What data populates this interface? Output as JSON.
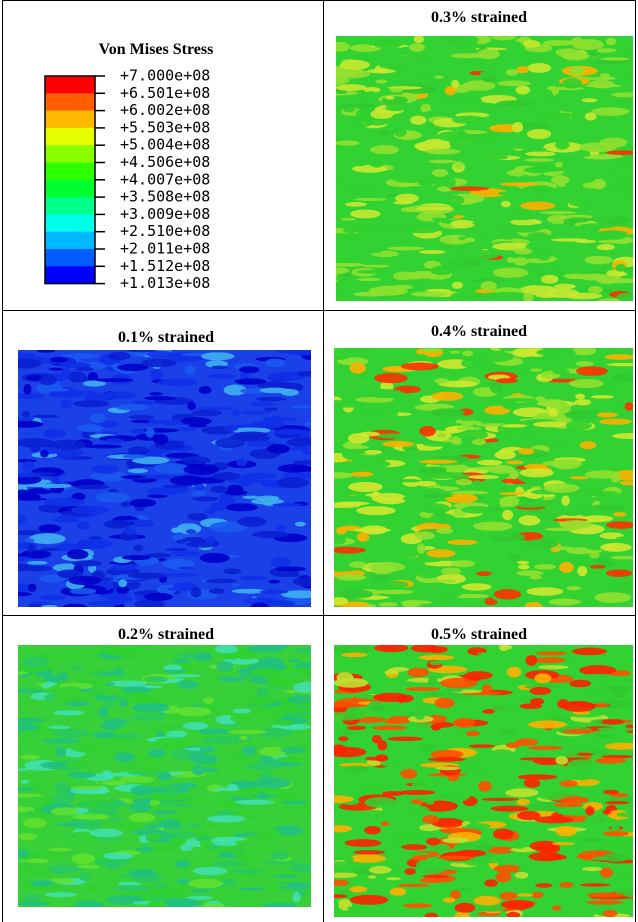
{
  "legend": {
    "title": "Von Mises Stress",
    "labels": [
      "+7.000e+08",
      "+6.501e+08",
      "+6.002e+08",
      "+5.503e+08",
      "+5.004e+08",
      "+4.506e+08",
      "+4.007e+08",
      "+3.508e+08",
      "+3.009e+08",
      "+2.510e+08",
      "+2.011e+08",
      "+1.512e+08",
      "+1.013e+08"
    ],
    "colors": [
      "#ff0000",
      "#ff5d00",
      "#ffb900",
      "#e8ff00",
      "#8bff00",
      "#2eff00",
      "#00ff2e",
      "#00ff8b",
      "#00ffe8",
      "#00b9ff",
      "#005dff",
      "#0000ff"
    ]
  },
  "panels": [
    {
      "title": "0.3% strained"
    },
    {
      "title": "0.1% strained"
    },
    {
      "title": "0.4% strained"
    },
    {
      "title": "0.2% strained"
    },
    {
      "title": "0.5% strained"
    }
  ]
}
